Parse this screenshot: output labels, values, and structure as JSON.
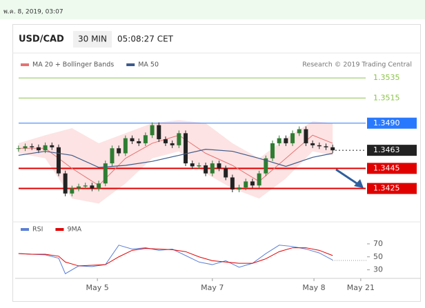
{
  "top_bar": {
    "date": "พ.ค. 8, 2019, 03:07"
  },
  "header": {
    "symbol": "USD/CAD",
    "interval": "30 MIN",
    "time": "05:08:27 CET"
  },
  "chart_data": [
    {
      "type": "candlestick",
      "source": "Research © 2019 Trading Central",
      "values": [
        1.3465,
        1.3467,
        1.3466,
        1.3463,
        1.3468,
        1.3466,
        1.344,
        1.342,
        1.3425,
        1.3427,
        1.3428,
        1.3425,
        1.343,
        1.345,
        1.3465,
        1.346,
        1.3475,
        1.3472,
        1.347,
        1.3478,
        1.3488,
        1.3474,
        1.347,
        1.3468,
        1.348,
        1.345,
        1.3447,
        1.3448,
        1.344,
        1.345,
        1.3445,
        1.3436,
        1.3424,
        1.3426,
        1.3432,
        1.3428,
        1.344,
        1.3455,
        1.347,
        1.3475,
        1.347,
        1.348,
        1.3484,
        1.347,
        1.3468,
        1.3467,
        1.3466,
        1.3463
      ],
      "up_color": "#2e7d32",
      "down_color": "#222222",
      "series": [
        {
          "name": "MA 20 + Bollinger Bands",
          "color": "#e57373",
          "band_color": "#fde3e3",
          "x": [
            0,
            4,
            8,
            12,
            16,
            20,
            24,
            28,
            32,
            36,
            40,
            44,
            47
          ],
          "values": [
            1.3465,
            1.3465,
            1.3445,
            1.3428,
            1.3455,
            1.347,
            1.3478,
            1.346,
            1.3448,
            1.3432,
            1.3455,
            1.3478,
            1.347
          ],
          "upper": [
            1.347,
            1.3478,
            1.3485,
            1.347,
            1.348,
            1.349,
            1.3493,
            1.349,
            1.347,
            1.3455,
            1.3475,
            1.3492,
            1.349
          ],
          "lower": [
            1.346,
            1.3455,
            1.3415,
            1.341,
            1.343,
            1.3455,
            1.3462,
            1.344,
            1.3425,
            1.3415,
            1.3435,
            1.3462,
            1.3458
          ]
        },
        {
          "name": "MA 50",
          "color": "#3d5a8a",
          "x": [
            0,
            4,
            8,
            12,
            16,
            20,
            24,
            28,
            32,
            36,
            40,
            44,
            47
          ],
          "values": [
            1.3458,
            1.3462,
            1.3458,
            1.3446,
            1.3448,
            1.3452,
            1.3458,
            1.3464,
            1.3462,
            1.3455,
            1.3447,
            1.3456,
            1.346
          ]
        }
      ],
      "levels": [
        {
          "value": 1.3535,
          "label": "1.3535",
          "color": "#8bc34a",
          "box": false,
          "style": "solid"
        },
        {
          "value": 1.3515,
          "label": "1.3515",
          "color": "#8bc34a",
          "box": false,
          "style": "solid"
        },
        {
          "value": 1.349,
          "label": "1.3490",
          "color": "#2979ff",
          "box": true,
          "style": "solid"
        },
        {
          "value": 1.3463,
          "label": "1.3463",
          "color": "#222222",
          "box": true,
          "style": "dotted"
        },
        {
          "value": 1.3445,
          "label": "1.3445",
          "color": "#e00000",
          "box": true,
          "style": "solid"
        },
        {
          "value": 1.3425,
          "label": "1.3425",
          "color": "#e00000",
          "box": true,
          "style": "solid"
        }
      ],
      "xlim": [
        -0.5,
        54
      ],
      "ylim": [
        1.34,
        1.3544
      ],
      "xticks": [
        {
          "value": 11.8,
          "label": "May 5"
        },
        {
          "value": 29,
          "label": "May 7"
        },
        {
          "value": 44.2,
          "label": "May 8"
        },
        {
          "value": 51.2,
          "label": "May 21"
        }
      ]
    },
    {
      "type": "line",
      "xlim": [
        -0.5,
        54
      ],
      "ylim": [
        20,
        80
      ],
      "yticks": [
        30,
        50,
        70
      ],
      "series": [
        {
          "name": "RSI",
          "color": "#5b7fd6",
          "x": [
            0,
            2,
            4,
            6,
            7,
            9,
            11,
            13,
            15,
            17,
            19,
            21,
            23,
            25,
            27,
            29,
            31,
            33,
            35,
            37,
            39,
            41,
            43,
            45,
            47
          ],
          "values": [
            55,
            54,
            53,
            48,
            24,
            36,
            35,
            38,
            68,
            62,
            64,
            60,
            62,
            52,
            42,
            38,
            44,
            34,
            40,
            55,
            68,
            66,
            62,
            56,
            45
          ]
        },
        {
          "name": "9MA",
          "color": "#e00000",
          "x": [
            0,
            2,
            4,
            6,
            7,
            9,
            11,
            13,
            15,
            17,
            19,
            21,
            23,
            25,
            27,
            29,
            31,
            33,
            35,
            37,
            39,
            41,
            43,
            45,
            47
          ],
          "values": [
            55,
            54,
            54,
            51,
            42,
            36,
            37,
            38,
            50,
            60,
            63,
            62,
            61,
            58,
            50,
            44,
            42,
            40,
            40,
            47,
            58,
            64,
            64,
            60,
            52
          ]
        }
      ]
    }
  ]
}
